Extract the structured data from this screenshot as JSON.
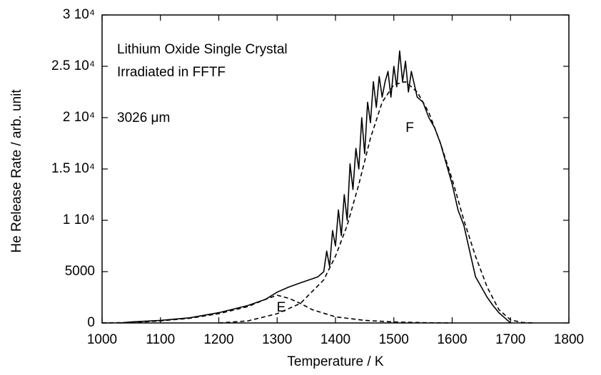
{
  "chart_data": {
    "type": "line",
    "xlabel": "Temperature  /  K",
    "ylabel": "He Release Rate / arb. unit",
    "annotations": [
      "Lithium Oxide Single Crystal",
      "Irradiated in FFTF",
      "3026 μm",
      "E",
      "F"
    ],
    "xlim": [
      1000,
      1800
    ],
    "xticks": [
      1000,
      1100,
      1200,
      1300,
      1400,
      1500,
      1600,
      1700,
      1800
    ],
    "ylim": [
      0,
      30000
    ],
    "yticks": [
      0,
      5000,
      {
        "value": 10000,
        "label": "1 10⁴"
      },
      {
        "value": 15000,
        "label": "1.5 10⁴"
      },
      {
        "value": 20000,
        "label": "2 10⁴"
      },
      {
        "value": 25000,
        "label": "2.5 10⁴"
      },
      {
        "value": 30000,
        "label": "3 10⁴"
      }
    ],
    "series": [
      {
        "color": "#000000",
        "dash": "solid",
        "x": [
          1030,
          1050,
          1100,
          1150,
          1200,
          1250,
          1280,
          1300,
          1320,
          1340,
          1360,
          1370,
          1380,
          1385,
          1390,
          1395,
          1400,
          1405,
          1410,
          1415,
          1420,
          1425,
          1430,
          1435,
          1440,
          1445,
          1450,
          1455,
          1460,
          1465,
          1470,
          1475,
          1480,
          1485,
          1490,
          1495,
          1500,
          1505,
          1510,
          1515,
          1520,
          1525,
          1530,
          1540,
          1550,
          1560,
          1570,
          1580,
          1590,
          1600,
          1610,
          1620,
          1630,
          1640,
          1650,
          1660,
          1670,
          1680,
          1690,
          1700
        ],
        "values": [
          0,
          100,
          250,
          500,
          1000,
          1700,
          2300,
          3000,
          3500,
          3900,
          4300,
          4500,
          5000,
          7000,
          5500,
          9000,
          7500,
          11000,
          8500,
          12500,
          10000,
          15500,
          13000,
          17000,
          15000,
          20000,
          16500,
          21500,
          19500,
          23500,
          21000,
          24000,
          22000,
          23500,
          24500,
          22000,
          25000,
          23000,
          26500,
          23500,
          25500,
          22500,
          24500,
          22000,
          21500,
          20000,
          19000,
          17500,
          15500,
          13500,
          11000,
          9500,
          7000,
          4500,
          3500,
          2500,
          1700,
          1000,
          500,
          0
        ]
      },
      {
        "color": "#000000",
        "dash": "dashed",
        "x": [
          1000,
          1050,
          1100,
          1150,
          1200,
          1250,
          1280,
          1300,
          1320,
          1340,
          1360,
          1400,
          1450,
          1500,
          1550,
          1600
        ],
        "values": [
          0,
          50,
          200,
          450,
          900,
          1600,
          2300,
          2700,
          2400,
          1900,
          1300,
          600,
          250,
          100,
          30,
          0
        ]
      },
      {
        "color": "#000000",
        "dash": "dashed",
        "x": [
          1200,
          1250,
          1300,
          1340,
          1380,
          1400,
          1420,
          1440,
          1460,
          1480,
          1500,
          1520,
          1540,
          1560,
          1580,
          1600,
          1620,
          1640,
          1660,
          1680,
          1700,
          1720,
          1740
        ],
        "values": [
          0,
          200,
          900,
          1900,
          4200,
          6500,
          9500,
          13500,
          18000,
          21500,
          23200,
          23500,
          22500,
          20500,
          17500,
          14000,
          10000,
          6500,
          3500,
          1300,
          300,
          50,
          0
        ]
      }
    ]
  }
}
